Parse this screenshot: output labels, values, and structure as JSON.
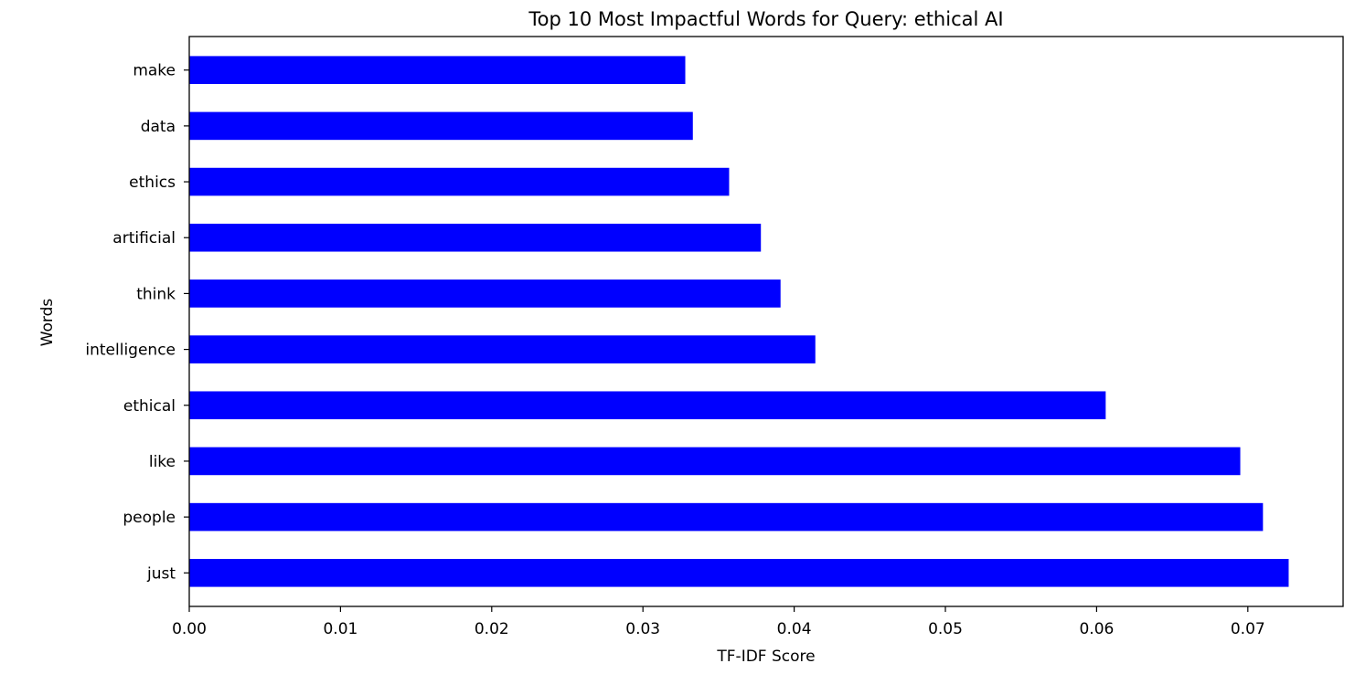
{
  "chart_data": {
    "type": "bar",
    "orientation": "horizontal",
    "title": "Top 10 Most Impactful Words for Query: ethical AI",
    "xlabel": "TF-IDF Score",
    "ylabel": "Words",
    "categories": [
      "just",
      "people",
      "like",
      "ethical",
      "intelligence",
      "think",
      "artificial",
      "ethics",
      "data",
      "make"
    ],
    "values": [
      0.0727,
      0.071,
      0.0695,
      0.0606,
      0.0414,
      0.0391,
      0.0378,
      0.0357,
      0.0333,
      0.0328
    ],
    "bar_color": "#0000ff",
    "xlim": [
      0.0,
      0.0763
    ],
    "xticks": [
      0.0,
      0.01,
      0.02,
      0.03,
      0.04,
      0.05,
      0.06,
      0.07
    ],
    "xtick_labels": [
      "0.00",
      "0.01",
      "0.02",
      "0.03",
      "0.04",
      "0.05",
      "0.06",
      "0.07"
    ],
    "grid": false,
    "legend": false
  }
}
